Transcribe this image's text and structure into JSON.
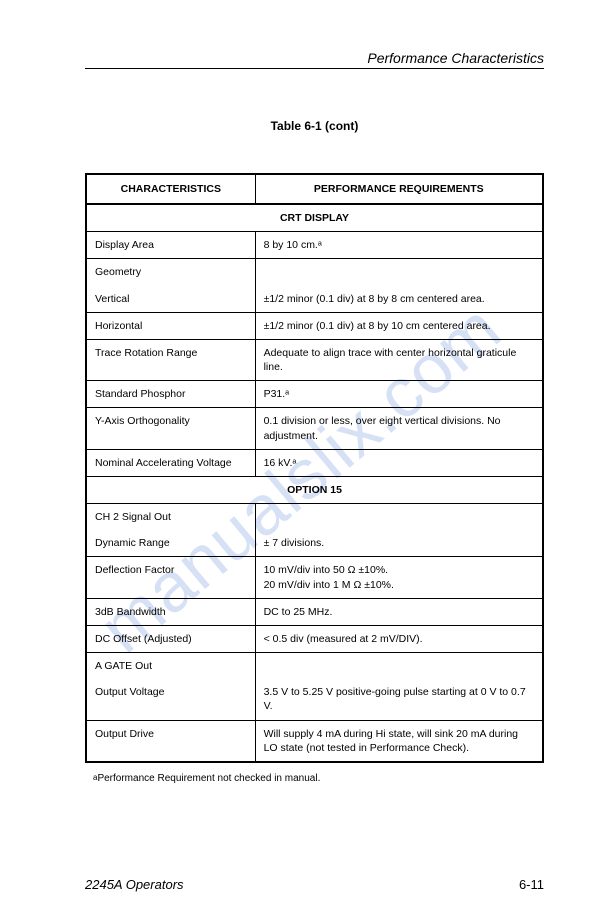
{
  "header": {
    "title": "Performance Characteristics"
  },
  "caption": "Table 6-1 (cont)",
  "columns": {
    "left": "CHARACTERISTICS",
    "right": "PERFORMANCE REQUIREMENTS"
  },
  "section1": {
    "title": "CRT DISPLAY",
    "rows": [
      {
        "c": "Display Area",
        "r": "8 by 10 cm.ᵃ",
        "sub": false
      },
      {
        "c": "Geometry",
        "r": "",
        "sub": false,
        "group": true
      },
      {
        "c": "Vertical",
        "r": "±1/2 minor (0.1 div) at 8 by 8 cm centered area.",
        "sub": true
      },
      {
        "c": "Horizontal",
        "r": "±1/2 minor (0.1 div) at 8 by 10 cm centered area.",
        "sub": true
      },
      {
        "c": "Trace Rotation Range",
        "r": "Adequate to align trace with center horizontal graticule line.",
        "sub": false
      },
      {
        "c": "Standard Phosphor",
        "r": "P31.ᵃ",
        "sub": false
      },
      {
        "c": "Y-Axis Orthogonality",
        "r": "0.1 division or less, over eight vertical divisions.  No adjustment.",
        "sub": false
      },
      {
        "c": "Nominal Accelerating Voltage",
        "r": "16 kV.ᵃ",
        "sub": false
      }
    ]
  },
  "section2": {
    "title": "OPTION 15",
    "group1": "CH 2 Signal Out",
    "rows1": [
      {
        "c": "Dynamic Range",
        "r": "± 7 divisions."
      },
      {
        "c": "Deflection Factor",
        "r": "10 mV/div into 50 Ω  ±10%.",
        "r2": "20 mV/div into 1 M Ω  ±10%."
      },
      {
        "c": "3dB Bandwidth",
        "r": "DC to 25 MHz."
      },
      {
        "c": "DC Offset (Adjusted)",
        "r": "< 0.5 div (measured at 2 mV/DIV)."
      }
    ],
    "group2": "A GATE Out",
    "rows2": [
      {
        "c": "Output Voltage",
        "r": "3.5 V to 5.25 V positive-going pulse starting at 0 V to 0.7 V."
      },
      {
        "c": "Output Drive",
        "r": "Will supply 4 mA during Hi state, will sink 20 mA during LO state (not tested in Performance Check)."
      }
    ]
  },
  "footnote": "Performance Requirement not checked in manual.",
  "footer": {
    "left": "2245A Operators",
    "right": "6-11"
  },
  "watermark": "manualslix.com"
}
